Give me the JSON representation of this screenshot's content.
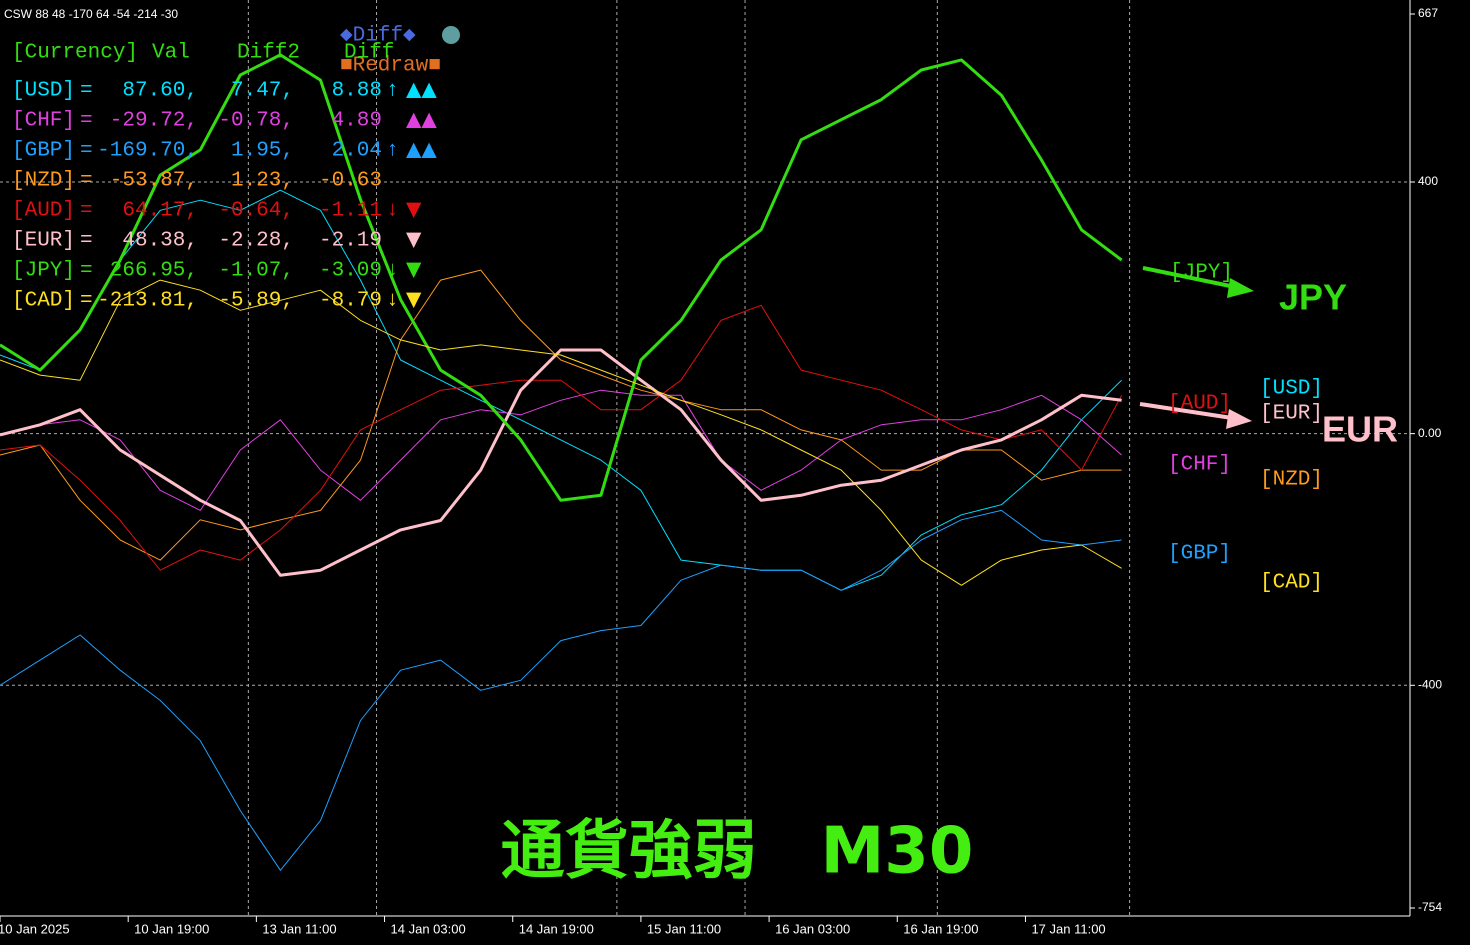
{
  "chart_data": {
    "type": "line",
    "title": "CSW 88 48 -170 64 -54 -214 -30",
    "x": [
      0,
      5,
      10,
      15,
      20,
      25,
      30,
      35,
      40,
      45,
      50,
      55,
      60,
      65,
      70,
      75,
      80,
      85,
      90,
      95,
      100,
      105,
      110,
      115,
      120,
      125,
      130,
      135,
      140
    ],
    "xlim": [
      0,
      176
    ],
    "xticks": [
      {
        "value": 0,
        "label": "10 Jan 2025"
      },
      {
        "value": 16,
        "label": "10 Jan 19:00"
      },
      {
        "value": 32,
        "label": "13 Jan 11:00"
      },
      {
        "value": 48,
        "label": "14 Jan 03:00"
      },
      {
        "value": 64,
        "label": "14 Jan 19:00"
      },
      {
        "value": 80,
        "label": "15 Jan 11:00"
      },
      {
        "value": 96,
        "label": "16 Jan 03:00"
      },
      {
        "value": 112,
        "label": "16 Jan 19:00"
      },
      {
        "value": 128,
        "label": "17 Jan 11:00"
      }
    ],
    "xgrid": [
      31,
      47,
      77,
      93,
      117,
      141
    ],
    "ylim": [
      -754,
      667
    ],
    "yticks": [
      667,
      400,
      {
        "value": 0,
        "label": "0.00"
      },
      -400,
      -754
    ],
    "grid": true,
    "series": [
      {
        "name": "[USD]",
        "color": "#00e0ff",
        "line_width": 1,
        "values": [
          125,
          101,
          165,
          276,
          355,
          371,
          355,
          387,
          355,
          244,
          117,
          85,
          53,
          22,
          -10,
          -42,
          -90,
          -201,
          -209,
          -217,
          -217,
          -249,
          -225,
          -161,
          -129,
          -113,
          -58,
          22,
          85
        ]
      },
      {
        "name": "[CHF]",
        "color": "#e040e0",
        "line_width": 1,
        "values": [
          -2,
          14,
          22,
          -10,
          -90,
          -122,
          -26,
          22,
          -58,
          -106,
          -42,
          22,
          38,
          30,
          53,
          69,
          61,
          61,
          -42,
          -90,
          -58,
          -10,
          14,
          22,
          22,
          38,
          61,
          22,
          -34
        ]
      },
      {
        "name": "[GBP]",
        "color": "#1ea0ff",
        "line_width": 1,
        "values": [
          -400,
          -360,
          -320,
          -376,
          -424,
          -488,
          -599,
          -694,
          -615,
          -456,
          -376,
          -360,
          -408,
          -392,
          -329,
          -313,
          -305,
          -233,
          -209,
          -217,
          -217,
          -249,
          -217,
          -169,
          -137,
          -122,
          -169,
          -177,
          -169
        ]
      },
      {
        "name": "[NZD]",
        "color": "#ff9a1e",
        "line_width": 1,
        "values": [
          -34,
          -18,
          -106,
          -169,
          -201,
          -137,
          -153,
          -137,
          -122,
          -42,
          149,
          244,
          260,
          180,
          117,
          93,
          69,
          53,
          38,
          38,
          6,
          -10,
          -58,
          -58,
          -26,
          -26,
          -74,
          -58,
          -58
        ]
      },
      {
        "name": "[AUD]",
        "color": "#e01010",
        "line_width": 1,
        "values": [
          -26,
          -18,
          -74,
          -138,
          -217,
          -185,
          -201,
          -153,
          -90,
          6,
          38,
          69,
          77,
          85,
          85,
          38,
          38,
          85,
          180,
          204,
          101,
          85,
          69,
          38,
          6,
          -10,
          6,
          -58,
          61
        ]
      },
      {
        "name": "[EUR]",
        "color": "#ffc0cb",
        "line_width": 3,
        "values": [
          -2,
          14,
          38,
          -26,
          -66,
          -106,
          -138,
          -225,
          -217,
          -185,
          -153,
          -138,
          -58,
          69,
          133,
          133,
          85,
          38,
          -42,
          -106,
          -98,
          -82,
          -74,
          -50,
          -26,
          -10,
          22,
          61,
          53
        ]
      },
      {
        "name": "[JPY]",
        "color": "#33dd11",
        "line_width": 3,
        "values": [
          141,
          101,
          165,
          276,
          411,
          451,
          570,
          602,
          562,
          372,
          213,
          101,
          61,
          -10,
          -106,
          -98,
          117,
          180,
          276,
          324,
          467,
          499,
          531,
          578,
          594,
          538,
          435,
          324,
          276
        ]
      },
      {
        "name": "[CAD]",
        "color": "#ffe020",
        "line_width": 1,
        "values": [
          117,
          93,
          85,
          212,
          244,
          228,
          196,
          212,
          228,
          180,
          149,
          133,
          141,
          133,
          125,
          101,
          77,
          53,
          30,
          6,
          -26,
          -58,
          -122,
          -201,
          -241,
          -201,
          -185,
          -177,
          -214
        ]
      }
    ],
    "annotations": [
      "JPY",
      "EUR",
      "通貨強弱　M30"
    ]
  },
  "panel": {
    "header": [
      "[Currency]",
      "Val",
      "Diff2",
      "Diff"
    ],
    "sep": "=",
    "buttons": [
      "◆Diff◆",
      "■Redraw■"
    ],
    "rows": [
      {
        "name": "[USD]",
        "val": "87.60,",
        "diff2": "7.47,",
        "diff": "8.88",
        "arrow": "↑",
        "signal": "▲▲"
      },
      {
        "name": "[CHF]",
        "val": "-29.72,",
        "diff2": "-0.78,",
        "diff": "4.89",
        "signal": "▲▲"
      },
      {
        "name": "[GBP]",
        "val": "-169.70,",
        "diff2": "1.95,",
        "diff": "2.04",
        "arrow": "↑",
        "signal": "▲▲"
      },
      {
        "name": "[NZD]",
        "val": "-53.87,",
        "diff2": "1.23,",
        "diff": "-0.63"
      },
      {
        "name": "[AUD]",
        "val": "64.17,",
        "diff2": "-0.64,",
        "diff": "-1.11",
        "arrow": "↓",
        "signal": "▼"
      },
      {
        "name": "[EUR]",
        "val": "48.38,",
        "diff2": "-2.28,",
        "diff": "-2.19",
        "signal": "▼"
      },
      {
        "name": "[JPY]",
        "val": "266.95,",
        "diff2": "-1.07,",
        "diff": "-3.09",
        "arrow": "↓",
        "signal": "▼"
      },
      {
        "name": "[CAD]",
        "val": "-213.81,",
        "diff2": "-5.89,",
        "diff": "-8.79",
        "arrow": "↓",
        "signal": "▼"
      }
    ]
  }
}
